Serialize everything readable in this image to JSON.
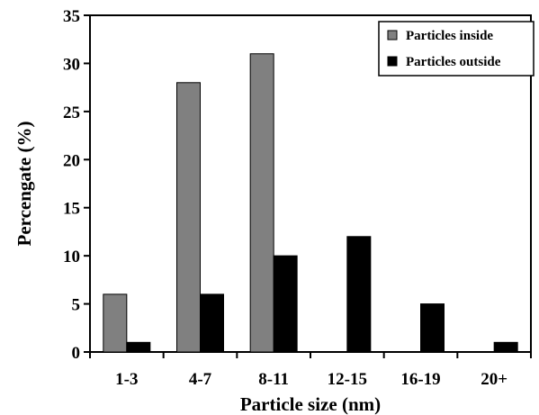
{
  "chart_data": {
    "type": "bar",
    "categories": [
      "1-3",
      "4-7",
      "8-11",
      "12-15",
      "16-19",
      "20+"
    ],
    "series": [
      {
        "name": "Particles inside",
        "values": [
          6,
          28,
          31,
          0,
          0,
          0
        ],
        "color": "#808080"
      },
      {
        "name": "Particles outside",
        "values": [
          1,
          6,
          10,
          12,
          5,
          1
        ],
        "color": "#000000"
      }
    ],
    "xlabel": "Particle size (nm)",
    "ylabel": "Percengate (%)",
    "ylim": [
      0,
      35
    ],
    "yticks": [
      0,
      5,
      10,
      15,
      20,
      25,
      30,
      35
    ],
    "grid": false,
    "legend_position": "top-right"
  }
}
